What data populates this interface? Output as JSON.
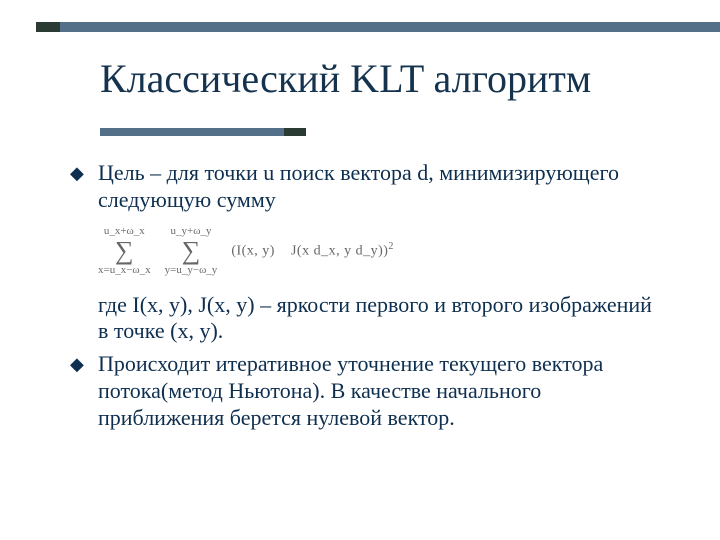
{
  "theme": {
    "bar_color": "#547088",
    "bar_dark_color": "#2a3b33",
    "title_color": "#15334e",
    "body_color": "#0e2f4f",
    "formula_color": "#666666",
    "background": "#ffffff",
    "title_fontsize": 40,
    "body_fontsize": 22,
    "formula_fontsize": 14,
    "font_family": "Times New Roman"
  },
  "title": "Классический KLT алгоритм",
  "bullets": {
    "b1": "Цель – для точки u поиск вектора d, минимизирующего следующую сумму",
    "b2_pre": "где I(x, y), J(x, y) – яркости первого и второго изображений в точке (x, y).",
    "b3": "Происходит итеративное уточнение текущего вектора потока(метод Ньютона). В качестве начального приближения берется нулевой вектор."
  },
  "formula": {
    "sum1_upper": "u_x+ω_x",
    "sum1_lower": "x=u_x−ω_x",
    "sum2_upper": "u_y+ω_y",
    "sum2_lower": "y=u_y−ω_y",
    "body_left": "(I(x, y)",
    "body_right": "J(x   d_x, y   d_y))",
    "exponent": "2"
  },
  "bullet_glyph": "◆"
}
